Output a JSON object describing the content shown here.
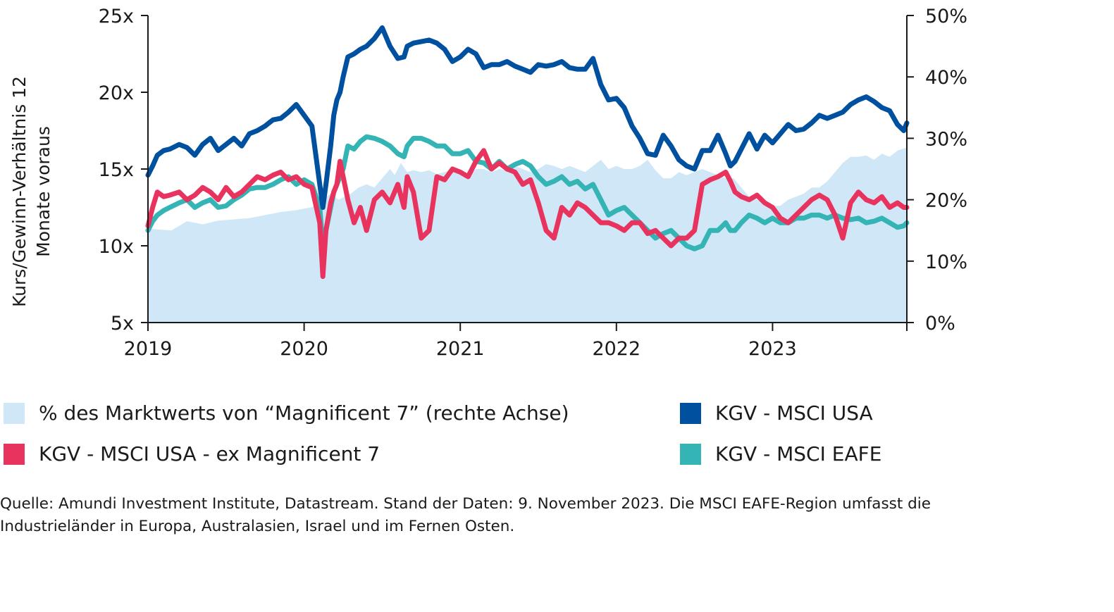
{
  "chart_data": {
    "type": "line",
    "title": "",
    "ylabel": "Kurs/Gewinn-Verhältnis 12 Monate voraus",
    "ylim": [
      5,
      25
    ],
    "y_ticks": [
      "25x",
      "20x",
      "15x",
      "10x",
      "5x"
    ],
    "y2lim": [
      0,
      50
    ],
    "y2_ticks": [
      "50%",
      "40%",
      "30%",
      "20%",
      "10%",
      "0%"
    ],
    "x_ticks": [
      "2019",
      "2020",
      "2021",
      "2022",
      "2023"
    ],
    "x_range": [
      2019.0,
      2023.86
    ],
    "grid": false,
    "legend_position": "bottom",
    "series": [
      {
        "name": "% des Marktwerts von “Magnificent 7” (rechte Achse)",
        "kind": "area",
        "axis": "right",
        "color": "#cfe7f7",
        "x": [
          2019.0,
          2019.15,
          2019.25,
          2019.35,
          2019.45,
          2019.55,
          2019.65,
          2019.75,
          2019.85,
          2019.95,
          2020.05,
          2020.12,
          2020.17,
          2020.22,
          2020.3,
          2020.35,
          2020.4,
          2020.45,
          2020.5,
          2020.55,
          2020.58,
          2020.62,
          2020.66,
          2020.7,
          2020.75,
          2020.8,
          2020.85,
          2020.9,
          2020.95,
          2021.0,
          2021.05,
          2021.1,
          2021.15,
          2021.2,
          2021.25,
          2021.3,
          2021.35,
          2021.4,
          2021.45,
          2021.5,
          2021.55,
          2021.6,
          2021.65,
          2021.7,
          2021.75,
          2021.8,
          2021.85,
          2021.9,
          2021.95,
          2022.0,
          2022.05,
          2022.1,
          2022.15,
          2022.2,
          2022.25,
          2022.3,
          2022.35,
          2022.4,
          2022.45,
          2022.5,
          2022.55,
          2022.6,
          2022.65,
          2022.7,
          2022.75,
          2022.8,
          2022.85,
          2022.9,
          2022.95,
          2023.0,
          2023.05,
          2023.1,
          2023.15,
          2023.2,
          2023.25,
          2023.3,
          2023.35,
          2023.4,
          2023.45,
          2023.5,
          2023.55,
          2023.6,
          2023.65,
          2023.7,
          2023.75,
          2023.8,
          2023.86
        ],
        "values": [
          15.3,
          15.0,
          16.5,
          16.0,
          16.6,
          16.8,
          17.0,
          17.5,
          18.0,
          18.3,
          18.8,
          20.0,
          21.0,
          20.0,
          21.0,
          22.0,
          22.5,
          22.0,
          23.5,
          25.0,
          24.0,
          26.0,
          24.5,
          24.8,
          24.5,
          24.8,
          24.2,
          24.5,
          25.0,
          24.3,
          23.8,
          25.0,
          25.0,
          24.5,
          25.0,
          24.8,
          25.5,
          25.0,
          24.5,
          25.0,
          25.8,
          25.5,
          25.0,
          25.5,
          25.0,
          24.5,
          25.5,
          26.5,
          25.0,
          25.5,
          25.0,
          25.0,
          25.5,
          26.5,
          24.8,
          23.5,
          23.5,
          24.5,
          24.0,
          24.5,
          25.0,
          24.5,
          24.0,
          23.5,
          23.5,
          22.0,
          20.5,
          20.0,
          19.5,
          19.0,
          19.0,
          20.0,
          20.5,
          21.0,
          22.0,
          22.0,
          23.0,
          24.5,
          26.0,
          27.0,
          27.0,
          27.2,
          26.5,
          27.5,
          27.0,
          28.0,
          28.5
        ]
      },
      {
        "name": "KGV - MSCI USA",
        "kind": "line",
        "axis": "left",
        "color": "#0050a0",
        "x": [
          2019.0,
          2019.03,
          2019.06,
          2019.1,
          2019.14,
          2019.2,
          2019.25,
          2019.3,
          2019.35,
          2019.4,
          2019.45,
          2019.5,
          2019.55,
          2019.6,
          2019.65,
          2019.7,
          2019.75,
          2019.8,
          2019.85,
          2019.9,
          2019.95,
          2020.0,
          2020.05,
          2020.1,
          2020.12,
          2020.14,
          2020.17,
          2020.19,
          2020.21,
          2020.23,
          2020.25,
          2020.28,
          2020.32,
          2020.36,
          2020.4,
          2020.45,
          2020.5,
          2020.55,
          2020.6,
          2020.64,
          2020.66,
          2020.7,
          2020.75,
          2020.8,
          2020.85,
          2020.9,
          2020.95,
          2021.0,
          2021.05,
          2021.1,
          2021.15,
          2021.2,
          2021.25,
          2021.3,
          2021.35,
          2021.4,
          2021.45,
          2021.5,
          2021.55,
          2021.6,
          2021.65,
          2021.7,
          2021.75,
          2021.8,
          2021.85,
          2021.9,
          2021.95,
          2022.0,
          2022.05,
          2022.1,
          2022.15,
          2022.2,
          2022.25,
          2022.3,
          2022.35,
          2022.4,
          2022.45,
          2022.5,
          2022.55,
          2022.6,
          2022.65,
          2022.7,
          2022.73,
          2022.76,
          2022.8,
          2022.85,
          2022.9,
          2022.95,
          2023.0,
          2023.05,
          2023.1,
          2023.15,
          2023.2,
          2023.25,
          2023.3,
          2023.35,
          2023.4,
          2023.45,
          2023.5,
          2023.55,
          2023.6,
          2023.65,
          2023.7,
          2023.75,
          2023.8,
          2023.84,
          2023.86
        ],
        "values": [
          14.6,
          15.2,
          15.9,
          16.2,
          16.3,
          16.6,
          16.4,
          15.9,
          16.6,
          17.0,
          16.2,
          16.6,
          17.0,
          16.5,
          17.3,
          17.5,
          17.8,
          18.2,
          18.3,
          18.7,
          19.2,
          18.5,
          17.8,
          14.0,
          12.5,
          14.0,
          16.5,
          18.5,
          19.5,
          20.0,
          21.0,
          22.3,
          22.5,
          22.8,
          23.0,
          23.5,
          24.2,
          23.0,
          22.2,
          22.3,
          23.0,
          23.2,
          23.3,
          23.4,
          23.2,
          22.8,
          22.0,
          22.3,
          22.8,
          22.5,
          21.6,
          21.8,
          21.8,
          22.0,
          21.7,
          21.5,
          21.3,
          21.8,
          21.7,
          21.8,
          22.0,
          21.6,
          21.5,
          21.5,
          22.2,
          20.5,
          19.5,
          19.6,
          19.0,
          17.8,
          17.0,
          16.0,
          15.9,
          17.2,
          16.5,
          15.6,
          15.2,
          15.0,
          16.2,
          16.2,
          17.2,
          16.0,
          15.2,
          15.5,
          16.3,
          17.3,
          16.3,
          17.2,
          16.7,
          17.3,
          17.9,
          17.5,
          17.6,
          18.0,
          18.5,
          18.3,
          18.5,
          18.7,
          19.2,
          19.5,
          19.7,
          19.4,
          19.0,
          18.8,
          17.9,
          17.5,
          18.0
        ]
      },
      {
        "name": "KGV - MSCI USA - ex Magnificent 7",
        "kind": "line",
        "axis": "left",
        "color": "#e8335f",
        "x": [
          2019.0,
          2019.03,
          2019.06,
          2019.1,
          2019.14,
          2019.2,
          2019.25,
          2019.3,
          2019.35,
          2019.4,
          2019.45,
          2019.5,
          2019.55,
          2019.6,
          2019.65,
          2019.7,
          2019.75,
          2019.8,
          2019.85,
          2019.9,
          2019.95,
          2020.0,
          2020.05,
          2020.1,
          2020.12,
          2020.14,
          2020.17,
          2020.19,
          2020.21,
          2020.23,
          2020.25,
          2020.28,
          2020.32,
          2020.36,
          2020.4,
          2020.45,
          2020.5,
          2020.55,
          2020.6,
          2020.64,
          2020.66,
          2020.7,
          2020.75,
          2020.8,
          2020.85,
          2020.9,
          2020.95,
          2021.0,
          2021.05,
          2021.1,
          2021.15,
          2021.2,
          2021.25,
          2021.3,
          2021.35,
          2021.4,
          2021.45,
          2021.5,
          2021.55,
          2021.6,
          2021.65,
          2021.7,
          2021.75,
          2021.8,
          2021.85,
          2021.9,
          2021.95,
          2022.0,
          2022.05,
          2022.1,
          2022.15,
          2022.2,
          2022.25,
          2022.3,
          2022.35,
          2022.4,
          2022.45,
          2022.5,
          2022.55,
          2022.6,
          2022.65,
          2022.7,
          2022.73,
          2022.76,
          2022.8,
          2022.85,
          2022.9,
          2022.95,
          2023.0,
          2023.05,
          2023.1,
          2023.15,
          2023.2,
          2023.25,
          2023.3,
          2023.35,
          2023.4,
          2023.45,
          2023.5,
          2023.55,
          2023.6,
          2023.65,
          2023.7,
          2023.75,
          2023.8,
          2023.84,
          2023.86
        ],
        "values": [
          11.3,
          12.5,
          13.5,
          13.2,
          13.3,
          13.5,
          13.0,
          13.3,
          13.8,
          13.5,
          13.0,
          13.8,
          13.2,
          13.5,
          14.0,
          14.5,
          14.3,
          14.6,
          14.8,
          14.3,
          14.5,
          14.0,
          13.8,
          11.5,
          8.0,
          11.0,
          12.8,
          13.5,
          14.0,
          15.5,
          14.5,
          13.0,
          11.5,
          12.5,
          11.0,
          13.0,
          13.5,
          12.8,
          14.0,
          12.5,
          14.5,
          13.5,
          10.5,
          11.0,
          14.5,
          14.3,
          15.0,
          14.8,
          14.5,
          15.5,
          16.2,
          15.0,
          15.4,
          15.0,
          14.8,
          14.0,
          14.3,
          12.8,
          11.0,
          10.5,
          12.5,
          12.0,
          12.8,
          12.5,
          12.0,
          11.5,
          11.5,
          11.3,
          11.0,
          11.5,
          11.5,
          10.8,
          11.0,
          10.5,
          10.0,
          10.5,
          10.5,
          11.0,
          14.0,
          14.3,
          14.5,
          14.8,
          14.2,
          13.5,
          13.2,
          13.0,
          13.3,
          12.8,
          12.5,
          11.8,
          11.5,
          12.0,
          12.5,
          13.0,
          13.3,
          13.0,
          12.0,
          10.5,
          12.8,
          13.5,
          13.0,
          12.8,
          13.2,
          12.5,
          12.8,
          12.5,
          12.5
        ]
      },
      {
        "name": "KGV - MSCI EAFE",
        "kind": "line",
        "axis": "left",
        "color": "#34b4b4",
        "x": [
          2019.0,
          2019.03,
          2019.06,
          2019.1,
          2019.14,
          2019.2,
          2019.25,
          2019.3,
          2019.35,
          2019.4,
          2019.45,
          2019.5,
          2019.55,
          2019.6,
          2019.65,
          2019.7,
          2019.75,
          2019.8,
          2019.85,
          2019.9,
          2019.95,
          2020.0,
          2020.05,
          2020.1,
          2020.12,
          2020.14,
          2020.17,
          2020.19,
          2020.21,
          2020.23,
          2020.25,
          2020.28,
          2020.32,
          2020.36,
          2020.4,
          2020.45,
          2020.5,
          2020.55,
          2020.6,
          2020.64,
          2020.66,
          2020.7,
          2020.75,
          2020.8,
          2020.85,
          2020.9,
          2020.95,
          2021.0,
          2021.05,
          2021.1,
          2021.15,
          2021.2,
          2021.25,
          2021.3,
          2021.35,
          2021.4,
          2021.45,
          2021.5,
          2021.55,
          2021.6,
          2021.65,
          2021.7,
          2021.75,
          2021.8,
          2021.85,
          2021.9,
          2021.95,
          2022.0,
          2022.05,
          2022.1,
          2022.15,
          2022.2,
          2022.25,
          2022.3,
          2022.35,
          2022.4,
          2022.45,
          2022.5,
          2022.55,
          2022.6,
          2022.65,
          2022.7,
          2022.73,
          2022.76,
          2022.8,
          2022.85,
          2022.9,
          2022.95,
          2023.0,
          2023.05,
          2023.1,
          2023.15,
          2023.2,
          2023.25,
          2023.3,
          2023.35,
          2023.4,
          2023.45,
          2023.5,
          2023.55,
          2023.6,
          2023.65,
          2023.7,
          2023.75,
          2023.8,
          2023.84,
          2023.86
        ],
        "values": [
          11.0,
          11.6,
          12.0,
          12.3,
          12.5,
          12.8,
          13.0,
          12.5,
          12.8,
          13.0,
          12.5,
          12.6,
          13.0,
          13.3,
          13.7,
          13.8,
          13.8,
          14.0,
          14.3,
          14.5,
          14.0,
          14.3,
          14.0,
          12.5,
          10.0,
          11.0,
          12.5,
          13.5,
          14.0,
          14.5,
          15.0,
          16.5,
          16.3,
          16.8,
          17.1,
          17.0,
          16.8,
          16.5,
          16.0,
          15.8,
          16.5,
          17.0,
          17.0,
          16.8,
          16.5,
          16.5,
          16.0,
          16.0,
          16.2,
          15.5,
          15.4,
          15.0,
          15.5,
          15.0,
          15.3,
          15.5,
          15.2,
          14.5,
          14.0,
          14.2,
          14.5,
          14.0,
          14.2,
          13.7,
          14.0,
          13.0,
          12.0,
          12.3,
          12.5,
          12.0,
          11.5,
          11.0,
          10.5,
          10.8,
          11.0,
          10.5,
          10.0,
          9.8,
          10.0,
          11.0,
          11.0,
          11.5,
          11.0,
          11.0,
          11.5,
          12.0,
          11.8,
          11.5,
          11.8,
          11.5,
          11.5,
          11.8,
          11.8,
          12.0,
          12.0,
          11.8,
          12.0,
          11.8,
          11.7,
          11.8,
          11.5,
          11.6,
          11.8,
          11.5,
          11.2,
          11.3,
          11.5
        ]
      }
    ]
  },
  "legend": {
    "items": [
      {
        "label": "% des Marktwerts von “Magnificent 7” (rechte Achse)",
        "color": "#cfe7f7"
      },
      {
        "label": "KGV - MSCI USA - ex Magnificent 7",
        "color": "#e8335f"
      },
      {
        "label": "KGV - MSCI USA",
        "color": "#0050a0"
      },
      {
        "label": "KGV - MSCI EAFE",
        "color": "#34b4b4"
      }
    ]
  },
  "source": {
    "text": "Quelle: Amundi Investment Institute, Datastream. Stand der Daten: 9. November 2023. Die MSCI EAFE-Region umfasst die Industrieländer in Europa, Australasien, Israel und im Fernen Osten."
  }
}
